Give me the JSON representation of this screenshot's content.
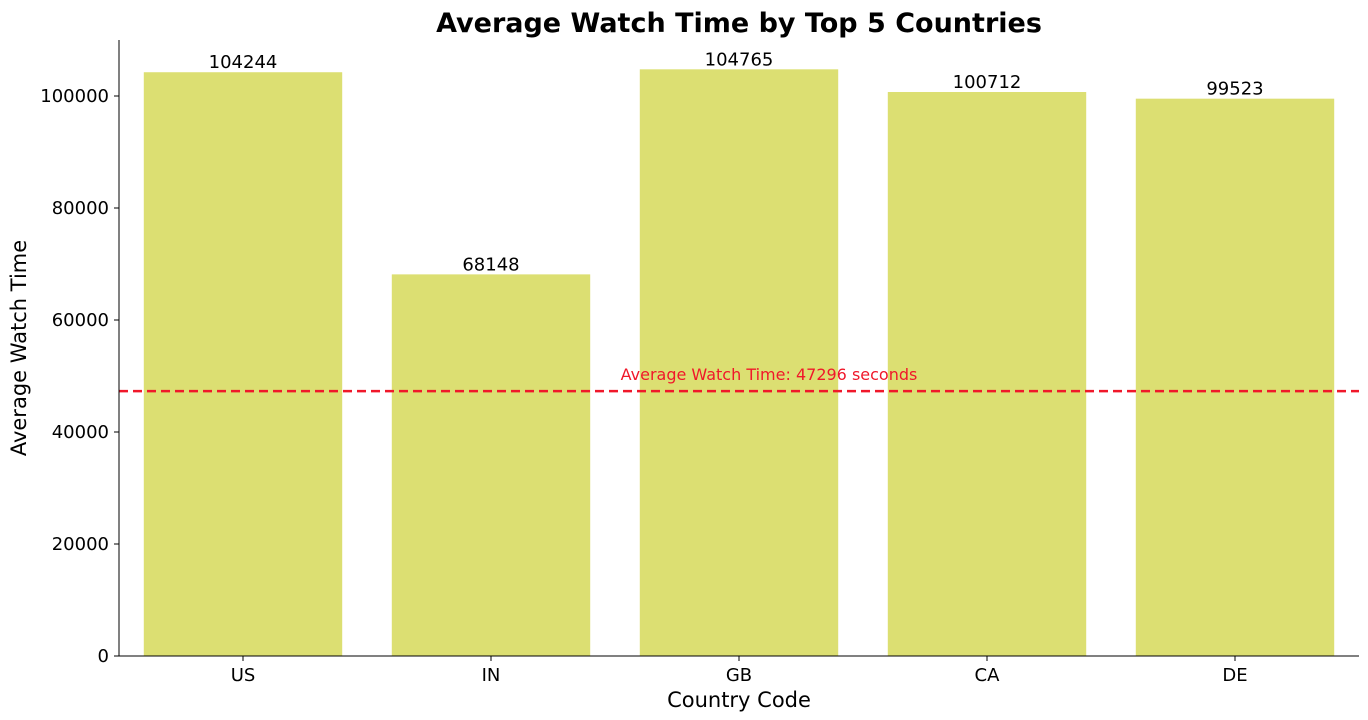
{
  "chart_data": {
    "type": "bar",
    "title": "Average Watch Time by Top 5 Countries",
    "xlabel": "Country Code",
    "ylabel": "Average Watch Time",
    "categories": [
      "US",
      "IN",
      "GB",
      "CA",
      "DE"
    ],
    "values": [
      104244,
      68148,
      104765,
      100712,
      99523
    ],
    "data_labels": [
      "104244",
      "68148",
      "104765",
      "100712",
      "99523"
    ],
    "ylim": [
      0,
      110000
    ],
    "yticks": [
      0,
      20000,
      40000,
      60000,
      80000,
      100000
    ],
    "ytick_labels": [
      "0",
      "20000",
      "40000",
      "60000",
      "80000",
      "100000"
    ],
    "bar_color": "#dcdf72",
    "reference_line": {
      "value": 47296,
      "label": "Average Watch Time: 47296 seconds",
      "color": "#f0182a",
      "style": "dashed"
    },
    "grid": false,
    "legend": "none"
  }
}
